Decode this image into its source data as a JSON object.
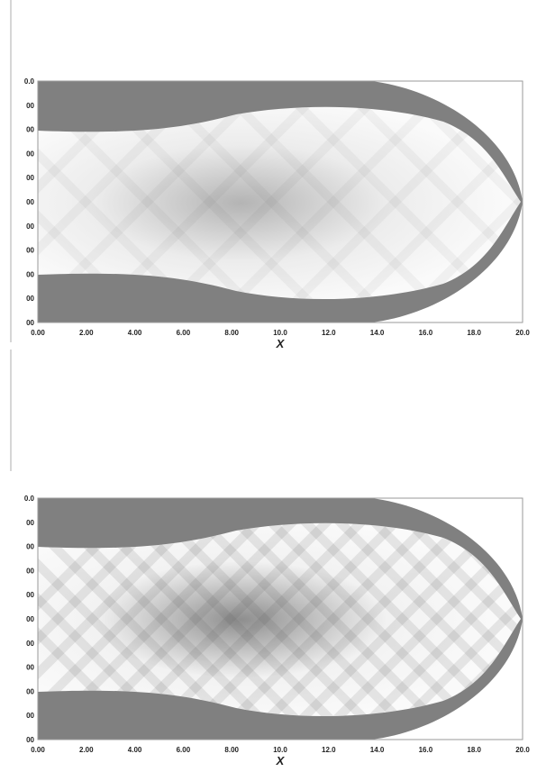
{
  "chart_data": [
    {
      "type": "heatmap",
      "xlabel": "X",
      "ylabel": "",
      "xlim": [
        0,
        20
      ],
      "x_ticks": [
        "0.00",
        "2.00",
        "4.00",
        "6.00",
        "8.00",
        "10.0",
        "12.0",
        "14.0",
        "16.0",
        "18.0",
        "20.0"
      ],
      "y_ticks": [
        "0.0",
        "00",
        "00",
        "00",
        "00",
        "00",
        "00",
        "00",
        "00",
        "00",
        "00"
      ],
      "colors": {
        "solid": "#808080",
        "field_light": "#ececec",
        "field_dark": "#b4b4b4"
      }
    },
    {
      "type": "heatmap",
      "xlabel": "X",
      "ylabel": "",
      "xlim": [
        0,
        20
      ],
      "x_ticks": [
        "0.00",
        "2.00",
        "4.00",
        "6.00",
        "8.00",
        "10.0",
        "12.0",
        "14.0",
        "16.0",
        "18.0",
        "20.0"
      ],
      "y_ticks": [
        "0.0",
        "00",
        "00",
        "00",
        "00",
        "00",
        "00",
        "00",
        "00",
        "00",
        "00"
      ],
      "colors": {
        "solid": "#808080",
        "field_light": "#f2f2f2",
        "field_dark": "#8e8e8e"
      }
    }
  ]
}
